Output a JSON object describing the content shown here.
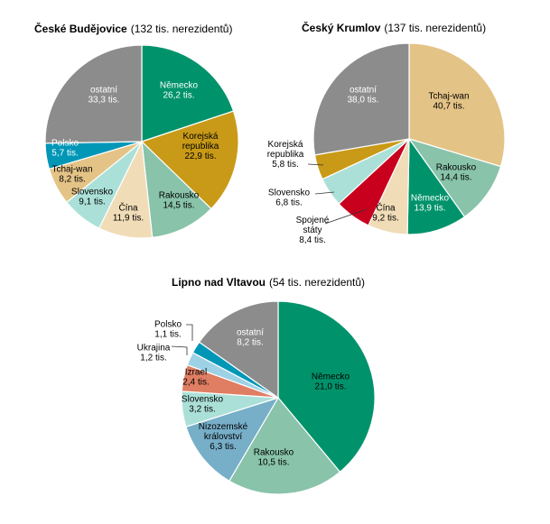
{
  "colors": {
    "ostatni": "#8c8c8c",
    "nemecko": "#00936b",
    "korejska": "#c99a17",
    "rakousko": "#88c3aa",
    "cina": "#f0dcb7",
    "slovensko": "#abe0d8",
    "tchaj": "#e4c386",
    "polsko": "#0097b7",
    "spojene": "#c8001e",
    "izrael": "#df7e63",
    "nizozemske": "#77aec8",
    "ukrajina": "#9dd1e6"
  },
  "chart_data": [
    {
      "type": "pie",
      "title": "České Budějovice",
      "subtitle": "(132 tis. nerezidentů)",
      "unit": "tis.",
      "slices": [
        {
          "key": "nemecko",
          "label": "Německo",
          "value": 26.2,
          "display": "26,2 tis."
        },
        {
          "key": "korejska",
          "label": "Korejská republika",
          "value": 22.9,
          "display": "22,9 tis."
        },
        {
          "key": "rakousko",
          "label": "Rakousko",
          "value": 14.5,
          "display": "14,5 tis."
        },
        {
          "key": "cina",
          "label": "Čína",
          "value": 11.9,
          "display": "11,9 tis."
        },
        {
          "key": "slovensko",
          "label": "Slovensko",
          "value": 9.1,
          "display": "9,1 tis."
        },
        {
          "key": "tchaj",
          "label": "Tchaj-wan",
          "value": 8.2,
          "display": "8,2 tis."
        },
        {
          "key": "polsko",
          "label": "Polsko",
          "value": 5.7,
          "display": "5,7 tis."
        },
        {
          "key": "ostatni",
          "label": "ostatní",
          "value": 33.3,
          "display": "33,3 tis."
        }
      ]
    },
    {
      "type": "pie",
      "title": "Český Krumlov",
      "subtitle": "(137 tis. nerezidentů)",
      "unit": "tis.",
      "slices": [
        {
          "key": "tchaj",
          "label": "Tchaj-wan",
          "value": 40.7,
          "display": "40,7 tis."
        },
        {
          "key": "rakousko",
          "label": "Rakousko",
          "value": 14.4,
          "display": "14,4 tis."
        },
        {
          "key": "nemecko",
          "label": "Německo",
          "value": 13.9,
          "display": "13,9 tis."
        },
        {
          "key": "cina",
          "label": "Čína",
          "value": 9.2,
          "display": "9,2 tis."
        },
        {
          "key": "spojene",
          "label": "Spojené státy",
          "value": 8.4,
          "display": "8,4 tis."
        },
        {
          "key": "slovensko",
          "label": "Slovensko",
          "value": 6.8,
          "display": "6,8 tis."
        },
        {
          "key": "korejska",
          "label": "Korejská republika",
          "value": 5.8,
          "display": "5,8 tis."
        },
        {
          "key": "ostatni",
          "label": "ostatní",
          "value": 38.0,
          "display": "38,0 tis."
        }
      ]
    },
    {
      "type": "pie",
      "title": "Lipno nad Vltavou",
      "subtitle": "(54 tis. nerezidentů)",
      "unit": "tis.",
      "slices": [
        {
          "key": "nemecko",
          "label": "Německo",
          "value": 21.0,
          "display": "21,0 tis."
        },
        {
          "key": "rakousko",
          "label": "Rakousko",
          "value": 10.5,
          "display": "10,5 tis."
        },
        {
          "key": "nizozemske",
          "label": "Nizozemské království",
          "value": 6.3,
          "display": "6,3 tis."
        },
        {
          "key": "slovensko",
          "label": "Slovensko",
          "value": 3.2,
          "display": "3,2 tis."
        },
        {
          "key": "izrael",
          "label": "Izrael",
          "value": 2.4,
          "display": "2,4 tis."
        },
        {
          "key": "ukrajina",
          "label": "Ukrajina",
          "value": 1.2,
          "display": "1,2 tis."
        },
        {
          "key": "polsko",
          "label": "Polsko",
          "value": 1.1,
          "display": "1,1 tis."
        },
        {
          "key": "ostatni",
          "label": "ostatní",
          "value": 8.2,
          "display": "8,2 tis."
        }
      ]
    }
  ]
}
